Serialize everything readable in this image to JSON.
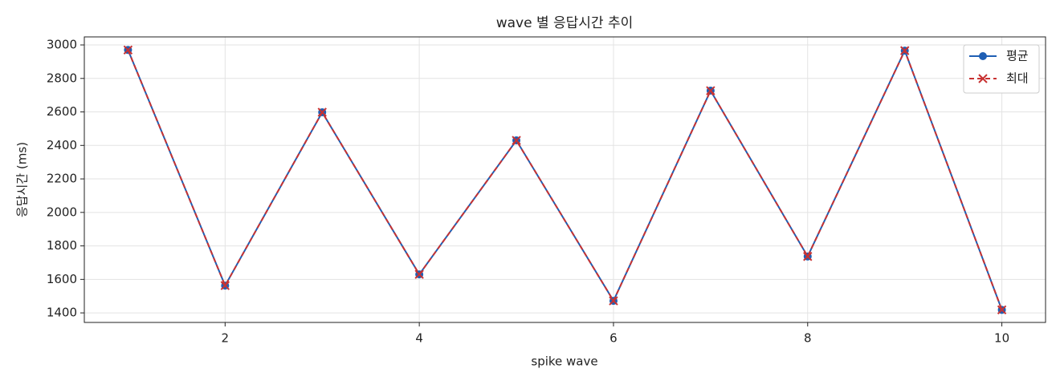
{
  "chart_data": {
    "type": "line",
    "title": "wave 별 응답시간 추이",
    "x_label": "spike wave",
    "y_label": "응답시간 (ms)",
    "x": [
      1,
      2,
      3,
      4,
      5,
      6,
      7,
      8,
      9,
      10
    ],
    "series": [
      {
        "name": "평균",
        "color": "#1f5fb4",
        "marker": "circle",
        "dash": "solid",
        "values": [
          2970,
          1563,
          2598,
          1630,
          2430,
          1472,
          2727,
          1737,
          2966,
          1418
        ]
      },
      {
        "name": "최대",
        "color": "#c83232",
        "marker": "x",
        "dash": "dashed",
        "values": [
          2970,
          1563,
          2598,
          1630,
          2430,
          1472,
          2727,
          1737,
          2966,
          1418
        ]
      }
    ],
    "xlim": [
      0.55,
      10.45
    ],
    "xticks": [
      2,
      4,
      6,
      8,
      10
    ],
    "ylim": [
      1343,
      3048
    ],
    "yticks": [
      1400,
      1600,
      1800,
      2000,
      2200,
      2400,
      2600,
      2800,
      3000
    ],
    "grid": true,
    "legend": "upper right"
  }
}
